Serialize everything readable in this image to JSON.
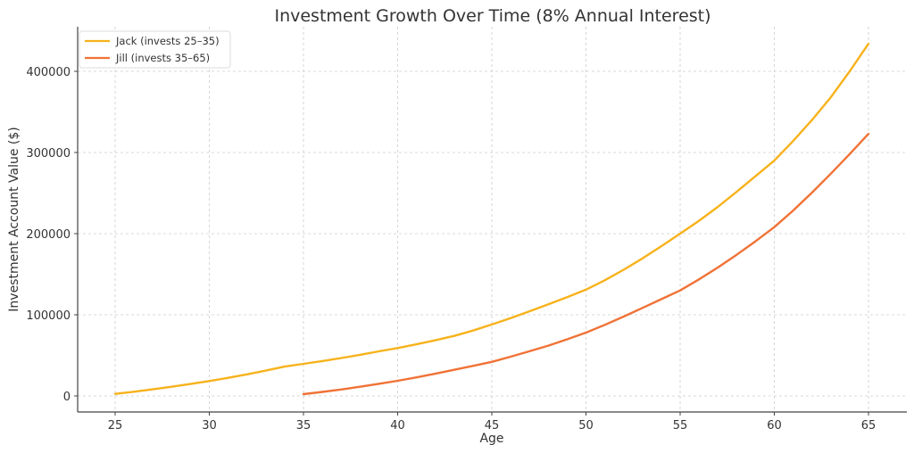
{
  "chart_data": {
    "type": "line",
    "title": "Investment Growth Over Time (8% Annual Interest)",
    "xlabel": "Age",
    "ylabel": "Investment Account Value ($)",
    "xlim": [
      23,
      67.1
    ],
    "ylim": [
      -20000,
      455000
    ],
    "xticks": [
      25,
      30,
      35,
      40,
      45,
      50,
      55,
      60,
      65
    ],
    "yticks": [
      0,
      100000,
      200000,
      300000,
      400000
    ],
    "grid": true,
    "legend_position": "upper left",
    "series": [
      {
        "name": "Jack (invests 25–35)",
        "color": "#F7B21B",
        "x": [
          25,
          26,
          27,
          28,
          29,
          30,
          31,
          32,
          33,
          34,
          35,
          36,
          37,
          38,
          39,
          40,
          41,
          42,
          43,
          44,
          45,
          46,
          47,
          48,
          49,
          50,
          51,
          52,
          53,
          54,
          55,
          56,
          57,
          58,
          59,
          60,
          61,
          62,
          63,
          64,
          65
        ],
        "values": [
          2500,
          5200,
          8100,
          11300,
          14700,
          18300,
          22300,
          26600,
          31200,
          36200,
          39600,
          43000,
          46700,
          50700,
          54900,
          59000,
          63600,
          68600,
          74000,
          80600,
          88000,
          95800,
          104300,
          113000,
          121800,
          131000,
          142500,
          155500,
          169500,
          184500,
          200000,
          215800,
          233000,
          251500,
          270800,
          290000,
          314200,
          340000,
          368000,
          400000,
          434000
        ]
      },
      {
        "name": "Jill (invests 35–65)",
        "color": "#F07236",
        "x": [
          35,
          36,
          37,
          38,
          39,
          40,
          41,
          42,
          43,
          44,
          45,
          46,
          47,
          48,
          49,
          50,
          51,
          52,
          53,
          54,
          55,
          56,
          57,
          58,
          59,
          60,
          61,
          62,
          63,
          64,
          65
        ],
        "values": [
          2200,
          4900,
          7900,
          11300,
          14900,
          18700,
          22900,
          27400,
          32200,
          37000,
          42000,
          48400,
          55000,
          62000,
          69800,
          78000,
          87600,
          97800,
          108500,
          119200,
          130000,
          143600,
          158200,
          174000,
          190500,
          208000,
          228500,
          250500,
          273800,
          298000,
          323000
        ]
      }
    ]
  },
  "legend": {
    "items": [
      {
        "label": "Jack (invests 25–35)",
        "color": "#F7B21B"
      },
      {
        "label": "Jill (invests 35–65)",
        "color": "#F07236"
      }
    ]
  },
  "labels": {
    "title": "Investment Growth Over Time (8% Annual Interest)",
    "xlabel": "Age",
    "ylabel": "Investment Account Value ($)"
  }
}
